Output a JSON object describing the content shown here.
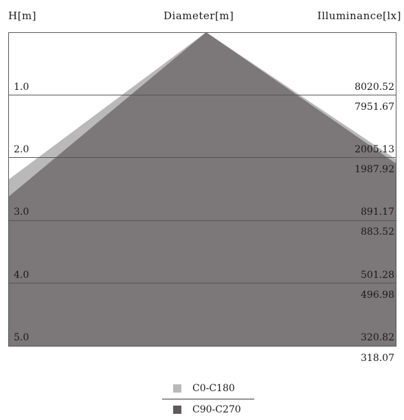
{
  "header": {
    "height_label": "H[m]",
    "diameter_label": "Diameter[m]",
    "illuminance_label": "Illuminance[lx]"
  },
  "colors": {
    "c0_c180": "#b9b9b9",
    "c90_c270": "#7c7778",
    "grid_line": "#555555"
  },
  "rows": [
    {
      "height": "1.0",
      "illum_c0": "8020.52",
      "illum_c90": "7951.67"
    },
    {
      "height": "2.0",
      "illum_c0": "2005.13",
      "illum_c90": "1987.92"
    },
    {
      "height": "3.0",
      "illum_c0": "891.17",
      "illum_c90": "883.52"
    },
    {
      "height": "4.0",
      "illum_c0": "501.28",
      "illum_c90": "496.98"
    },
    {
      "height": "5.0",
      "illum_c0": "320.82",
      "illum_c90": "318.07"
    }
  ],
  "legend": {
    "c0_label": "C0-C180",
    "c90_label": "C90-C270"
  }
}
